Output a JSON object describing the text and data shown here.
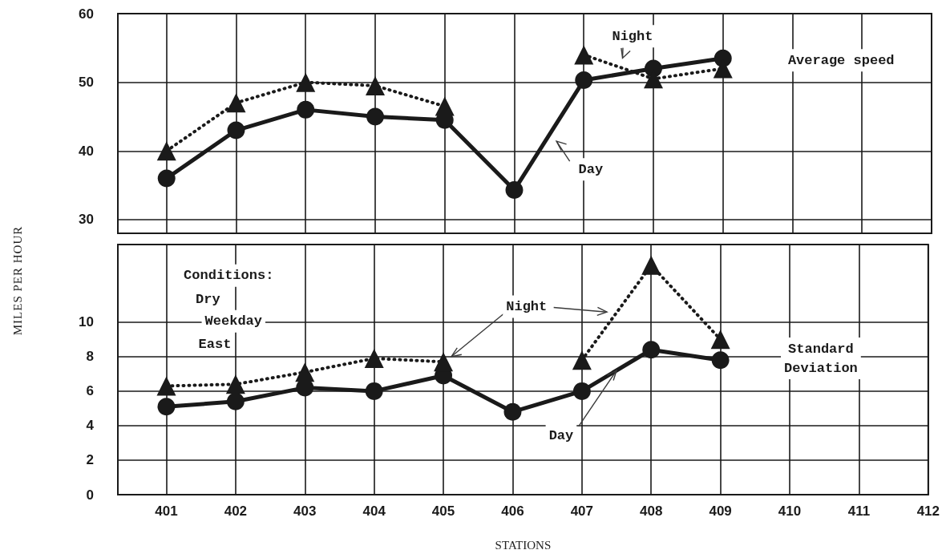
{
  "chart_data": [
    {
      "type": "line",
      "ylabel": "MILES PER HOUR",
      "x": [
        401,
        402,
        403,
        404,
        405,
        406,
        407,
        408,
        409
      ],
      "xlim": [
        400.3,
        412
      ],
      "xticks": [
        401,
        402,
        403,
        404,
        405,
        406,
        407,
        408,
        409,
        410,
        411,
        412
      ],
      "ylim": [
        28,
        60
      ],
      "yticks": [
        30,
        40,
        50,
        60
      ],
      "grid": true,
      "tick_labels": "y",
      "series": [
        {
          "color": "#1a1a1a",
          "marker": "circle",
          "line_style": "solid",
          "values": [
            36,
            43,
            46,
            45,
            44.5,
            34.3,
            50.3,
            52,
            53.5
          ]
        },
        {
          "color": "#1a1a1a",
          "marker": "triangle",
          "line_style": "dotted",
          "values": [
            40,
            47,
            50,
            49.5,
            46.5,
            null,
            54,
            50.5,
            52
          ]
        }
      ],
      "annotations": [
        "Night",
        "Day",
        "Average speed"
      ]
    },
    {
      "type": "line",
      "xlabel": "STATIONS",
      "x": [
        401,
        402,
        403,
        404,
        405,
        406,
        407,
        408,
        409
      ],
      "xlim": [
        400.3,
        412
      ],
      "xticks": [
        401,
        402,
        403,
        404,
        405,
        406,
        407,
        408,
        409,
        410,
        411,
        412
      ],
      "ylim": [
        0,
        14.5
      ],
      "yticks": [
        0,
        2,
        4,
        6,
        8,
        10
      ],
      "grid": true,
      "series": [
        {
          "color": "#1a1a1a",
          "marker": "circle",
          "line_style": "solid",
          "values": [
            5.1,
            5.4,
            6.2,
            6.0,
            6.9,
            4.8,
            6.0,
            8.4,
            7.8
          ]
        },
        {
          "color": "#1a1a1a",
          "marker": "triangle",
          "line_style": "dotted",
          "values": [
            6.3,
            6.4,
            7.1,
            7.9,
            7.7,
            null,
            7.8,
            13.3,
            9.0
          ]
        }
      ],
      "annotations": [
        "Conditions:",
        "Dry",
        "Weekday",
        "East",
        "Night",
        {
          "text": "Day",
          "x": 407.5,
          "y": 7.2
        },
        "Standard\nDeviation"
      ]
    }
  ]
}
